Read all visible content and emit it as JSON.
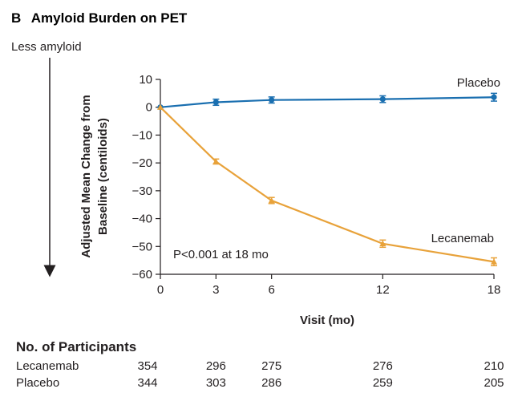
{
  "panel_letter": "B",
  "panel_title": "Amyloid Burden on PET",
  "direction_note": "Less amyloid",
  "annotation": "P<0.001 at 18 mo",
  "colors": {
    "placebo": "#1a6fb0",
    "lecanemab": "#e8a23a",
    "axis": "#231f20"
  },
  "chart_data": {
    "type": "line",
    "xlabel": "Visit (mo)",
    "ylabel_lines": [
      "Adjusted Mean Change from",
      "Baseline (centiloids)"
    ],
    "xlim": [
      0,
      18
    ],
    "ylim": [
      -60,
      10
    ],
    "xticks": [
      0,
      3,
      6,
      12,
      18
    ],
    "yticks": [
      10,
      0,
      -10,
      -20,
      -30,
      -40,
      -50,
      -60
    ],
    "ytick_labels": [
      "10",
      "0",
      "−10",
      "−20",
      "−30",
      "−40",
      "−50",
      "−60"
    ],
    "series": [
      {
        "name": "Placebo",
        "color_key": "placebo",
        "marker": "circle",
        "x": [
          0,
          3,
          6,
          12,
          18
        ],
        "y": [
          0,
          1.8,
          2.6,
          2.9,
          3.6
        ],
        "err": [
          0,
          1.1,
          1.1,
          1.2,
          1.4
        ]
      },
      {
        "name": "Lecanemab",
        "color_key": "lecanemab",
        "marker": "triangle",
        "x": [
          0,
          3,
          6,
          12,
          18
        ],
        "y": [
          0,
          -19.5,
          -33.5,
          -49,
          -55.5
        ],
        "err": [
          0,
          0.9,
          1.1,
          1.3,
          1.4
        ]
      }
    ]
  },
  "participants": {
    "title": "No. of Participants",
    "visits": [
      0,
      3,
      6,
      12,
      18
    ],
    "rows": [
      {
        "label": "Lecanemab",
        "counts": [
          "354",
          "296",
          "275",
          "276",
          "210"
        ]
      },
      {
        "label": "Placebo",
        "counts": [
          "344",
          "303",
          "286",
          "259",
          "205"
        ]
      }
    ]
  }
}
